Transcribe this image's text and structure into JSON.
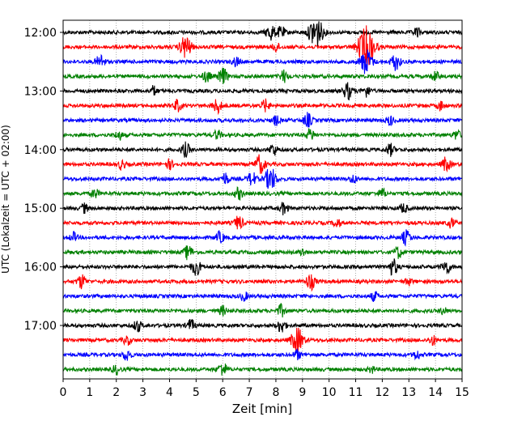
{
  "chart_data": {
    "type": "line",
    "title": "",
    "xlabel": "Zeit  [min]",
    "ylabel": "UTC (Lokalzeit = UTC + 02:00)",
    "xlim": [
      0,
      15
    ],
    "x_ticks": [
      0,
      1,
      2,
      3,
      4,
      5,
      6,
      7,
      8,
      9,
      10,
      11,
      12,
      13,
      14,
      15
    ],
    "y_tick_labels": [
      "12:00",
      "13:00",
      "14:00",
      "15:00",
      "16:00",
      "17:00"
    ],
    "grid": "vertical dotted",
    "trace_interval_minutes": 15,
    "color_cycle": [
      "#000000",
      "#ff0000",
      "#0000ff",
      "#008000"
    ],
    "traces": [
      {
        "start": "12:00",
        "bursts": [
          {
            "t": 7.8,
            "amp": 0.7
          },
          {
            "t": 8.2,
            "amp": 0.5
          },
          {
            "t": 9.5,
            "amp": 1.4
          },
          {
            "t": 13.3,
            "amp": 0.4
          }
        ]
      },
      {
        "start": "12:15",
        "bursts": [
          {
            "t": 4.6,
            "amp": 1.0
          },
          {
            "t": 11.4,
            "amp": 1.8
          },
          {
            "t": 8.0,
            "amp": 0.4
          }
        ]
      },
      {
        "start": "12:30",
        "bursts": [
          {
            "t": 1.4,
            "amp": 0.6
          },
          {
            "t": 11.4,
            "amp": 1.1
          },
          {
            "t": 12.5,
            "amp": 0.7
          },
          {
            "t": 6.5,
            "amp": 0.4
          }
        ]
      },
      {
        "start": "12:45",
        "bursts": [
          {
            "t": 5.4,
            "amp": 0.5
          },
          {
            "t": 6.0,
            "amp": 0.7
          },
          {
            "t": 8.3,
            "amp": 0.5
          },
          {
            "t": 14.0,
            "amp": 0.4
          }
        ]
      },
      {
        "start": "13:00",
        "bursts": [
          {
            "t": 10.7,
            "amp": 0.7
          },
          {
            "t": 11.4,
            "amp": 0.5
          },
          {
            "t": 3.4,
            "amp": 0.4
          }
        ]
      },
      {
        "start": "13:15",
        "bursts": [
          {
            "t": 4.3,
            "amp": 0.5
          },
          {
            "t": 5.8,
            "amp": 0.6
          },
          {
            "t": 7.6,
            "amp": 0.5
          },
          {
            "t": 14.2,
            "amp": 0.4
          }
        ]
      },
      {
        "start": "13:30",
        "bursts": [
          {
            "t": 8.0,
            "amp": 0.4
          },
          {
            "t": 9.2,
            "amp": 0.6
          },
          {
            "t": 12.3,
            "amp": 0.4
          }
        ]
      },
      {
        "start": "13:45",
        "bursts": [
          {
            "t": 2.1,
            "amp": 0.4
          },
          {
            "t": 5.8,
            "amp": 0.4
          },
          {
            "t": 9.3,
            "amp": 0.5
          },
          {
            "t": 14.8,
            "amp": 0.4
          }
        ]
      },
      {
        "start": "14:00",
        "bursts": [
          {
            "t": 4.6,
            "amp": 0.6
          },
          {
            "t": 7.9,
            "amp": 0.5
          },
          {
            "t": 12.3,
            "amp": 0.5
          }
        ]
      },
      {
        "start": "14:15",
        "bursts": [
          {
            "t": 7.4,
            "amp": 0.8
          },
          {
            "t": 2.2,
            "amp": 0.4
          },
          {
            "t": 14.4,
            "amp": 0.6
          },
          {
            "t": 4.0,
            "amp": 0.4
          }
        ]
      },
      {
        "start": "14:30",
        "bursts": [
          {
            "t": 7.1,
            "amp": 0.6
          },
          {
            "t": 7.8,
            "amp": 1.0
          },
          {
            "t": 6.1,
            "amp": 0.5
          },
          {
            "t": 10.9,
            "amp": 0.4
          }
        ]
      },
      {
        "start": "14:45",
        "bursts": [
          {
            "t": 6.6,
            "amp": 0.5
          },
          {
            "t": 12.0,
            "amp": 0.4
          },
          {
            "t": 1.2,
            "amp": 0.4
          }
        ]
      },
      {
        "start": "15:00",
        "bursts": [
          {
            "t": 0.8,
            "amp": 0.4
          },
          {
            "t": 8.3,
            "amp": 0.5
          },
          {
            "t": 12.8,
            "amp": 0.4
          }
        ]
      },
      {
        "start": "15:15",
        "bursts": [
          {
            "t": 6.6,
            "amp": 0.6
          },
          {
            "t": 10.3,
            "amp": 0.4
          },
          {
            "t": 14.6,
            "amp": 0.4
          }
        ]
      },
      {
        "start": "15:30",
        "bursts": [
          {
            "t": 5.9,
            "amp": 0.5
          },
          {
            "t": 12.9,
            "amp": 0.6
          },
          {
            "t": 0.4,
            "amp": 0.4
          }
        ]
      },
      {
        "start": "15:45",
        "bursts": [
          {
            "t": 4.7,
            "amp": 0.6
          },
          {
            "t": 12.6,
            "amp": 0.5
          },
          {
            "t": 9.0,
            "amp": 0.3
          }
        ]
      },
      {
        "start": "16:00",
        "bursts": [
          {
            "t": 5.0,
            "amp": 0.7
          },
          {
            "t": 12.4,
            "amp": 0.7
          },
          {
            "t": 14.4,
            "amp": 0.6
          }
        ]
      },
      {
        "start": "16:15",
        "bursts": [
          {
            "t": 0.7,
            "amp": 0.6
          },
          {
            "t": 9.3,
            "amp": 0.7
          },
          {
            "t": 13.0,
            "amp": 0.3
          }
        ]
      },
      {
        "start": "16:30",
        "bursts": [
          {
            "t": 6.8,
            "amp": 0.4
          },
          {
            "t": 11.7,
            "amp": 0.4
          }
        ]
      },
      {
        "start": "16:45",
        "bursts": [
          {
            "t": 6.0,
            "amp": 0.4
          },
          {
            "t": 8.2,
            "amp": 0.5
          },
          {
            "t": 14.3,
            "amp": 0.3
          }
        ]
      },
      {
        "start": "17:00",
        "bursts": [
          {
            "t": 2.8,
            "amp": 0.5
          },
          {
            "t": 4.8,
            "amp": 0.5
          },
          {
            "t": 8.2,
            "amp": 0.6
          }
        ]
      },
      {
        "start": "17:15",
        "bursts": [
          {
            "t": 8.8,
            "amp": 1.1
          },
          {
            "t": 2.4,
            "amp": 0.4
          },
          {
            "t": 13.9,
            "amp": 0.4
          }
        ]
      },
      {
        "start": "17:30",
        "bursts": [
          {
            "t": 2.4,
            "amp": 0.5
          },
          {
            "t": 8.8,
            "amp": 0.4
          },
          {
            "t": 13.3,
            "amp": 0.4
          }
        ]
      },
      {
        "start": "17:45",
        "bursts": [
          {
            "t": 2.0,
            "amp": 0.4
          },
          {
            "t": 6.0,
            "amp": 0.6
          },
          {
            "t": 11.6,
            "amp": 0.3
          }
        ]
      }
    ]
  }
}
